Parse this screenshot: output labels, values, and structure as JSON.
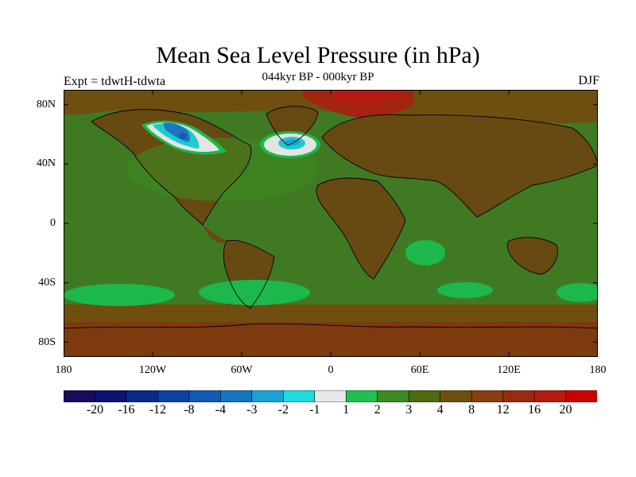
{
  "title": "Mean Sea Level Pressure (in hPa)",
  "subtitle": "044kyr BP - 000kyr BP",
  "left_label": "Expt = tdwtH-tdwta",
  "right_label": "DJF",
  "lat_labels": [
    "80N",
    "40N",
    "0",
    "40S",
    "80S"
  ],
  "lon_labels": [
    "180",
    "120W",
    "60W",
    "0",
    "60E",
    "120E",
    "180"
  ],
  "colorbar": {
    "labels": [
      "-20",
      "-16",
      "-12",
      "-8",
      "-4",
      "-3",
      "-2",
      "-1",
      "1",
      "2",
      "3",
      "4",
      "8",
      "12",
      "16",
      "20"
    ],
    "colors": [
      "#1a0a5e",
      "#0b1372",
      "#0a2a8a",
      "#0c40a2",
      "#0e5ab4",
      "#1375c4",
      "#1aa2d4",
      "#1cdcdc",
      "#e8e8e8",
      "#1fbf50",
      "#3c8a20",
      "#4d6a10",
      "#6e4f10",
      "#8a3e10",
      "#9a2a10",
      "#b51b10",
      "#cc0000"
    ]
  },
  "map_colors": {
    "ocean_base": "#3f7a22",
    "land_base": "#664a12",
    "polar": "#7c3a0e",
    "high_north": "#a32410",
    "green_band": "#1cb84b",
    "light": "#e4e4e4",
    "cyan": "#1ccccc",
    "blue": "#1c76c2",
    "coast": "#000000"
  }
}
